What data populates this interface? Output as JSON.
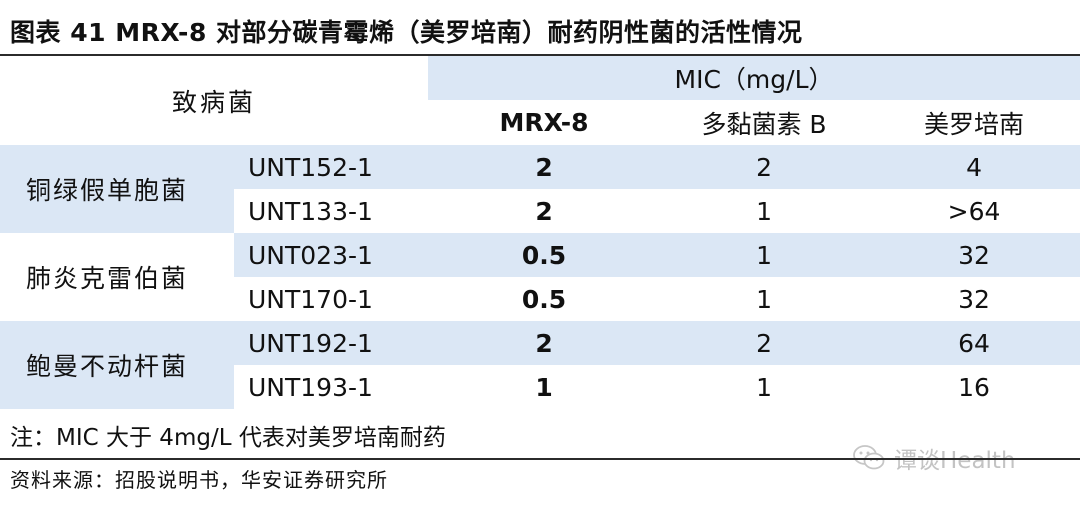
{
  "title": "图表 41 MRX-8 对部分碳青霉烯（美罗培南）耐药阴性菌的活性情况",
  "table": {
    "pathogen_header": "致病菌",
    "mic_header": "MIC（mg/L）",
    "drug_headers": [
      "MRX-8",
      "多黏菌素 B",
      "美罗培南"
    ],
    "groups": [
      {
        "genus": "铜绿假单胞菌",
        "rows": [
          {
            "strain": "UNT152-1",
            "values": [
              "2",
              "2",
              "4"
            ]
          },
          {
            "strain": "UNT133-1",
            "values": [
              "2",
              "1",
              ">64"
            ]
          }
        ]
      },
      {
        "genus": "肺炎克雷伯菌",
        "rows": [
          {
            "strain": "UNT023-1",
            "values": [
              "0.5",
              "1",
              "32"
            ]
          },
          {
            "strain": "UNT170-1",
            "values": [
              "0.5",
              "1",
              "32"
            ]
          }
        ]
      },
      {
        "genus": "鲍曼不动杆菌",
        "rows": [
          {
            "strain": "UNT192-1",
            "values": [
              "2",
              "2",
              "64"
            ]
          },
          {
            "strain": "UNT193-1",
            "values": [
              "1",
              "1",
              "16"
            ]
          }
        ]
      }
    ]
  },
  "note": "注：MIC 大于 4mg/L 代表对美罗培南耐药",
  "source": "资料来源：招股说明书，华安证券研究所",
  "watermark": "谭谈Health",
  "colors": {
    "header_fill": "#dbe7f5",
    "rule": "#2b2b2b"
  }
}
